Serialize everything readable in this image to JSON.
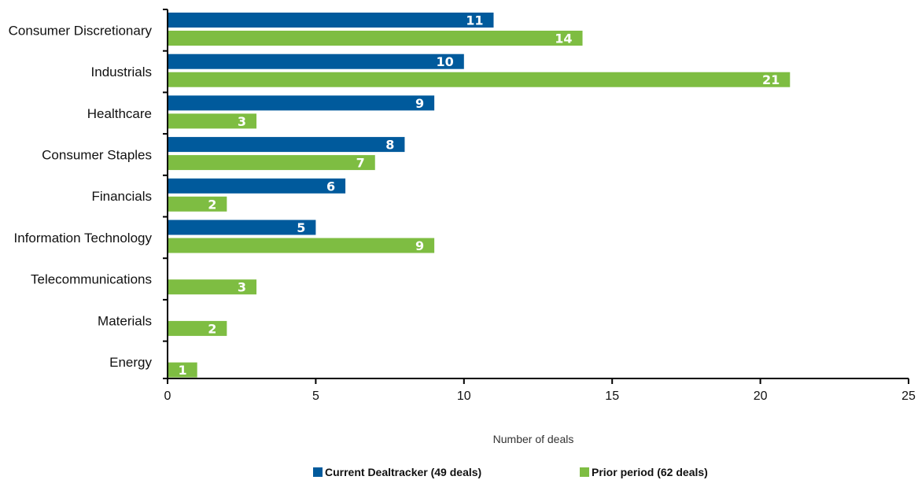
{
  "chart_data": {
    "type": "bar",
    "orientation": "horizontal",
    "categories": [
      "Consumer Discretionary",
      "Industrials",
      "Healthcare",
      "Consumer Staples",
      "Financials",
      "Information Technology",
      "Telecommunications",
      "Materials",
      "Energy"
    ],
    "series": [
      {
        "name": "Current Dealtracker (49 deals)",
        "color": "#005a9c",
        "values": [
          11,
          10,
          9,
          8,
          6,
          5,
          null,
          null,
          null
        ]
      },
      {
        "name": "Prior period (62 deals)",
        "color": "#7ebd42",
        "values": [
          14,
          21,
          3,
          7,
          2,
          9,
          3,
          2,
          1
        ]
      }
    ],
    "xlabel": "Number of deals",
    "ylabel": "",
    "xlim": [
      0,
      25
    ],
    "xticks": [
      0,
      5,
      10,
      15,
      20,
      25
    ],
    "grid": false,
    "legend_position": "bottom",
    "data_labels": true
  }
}
